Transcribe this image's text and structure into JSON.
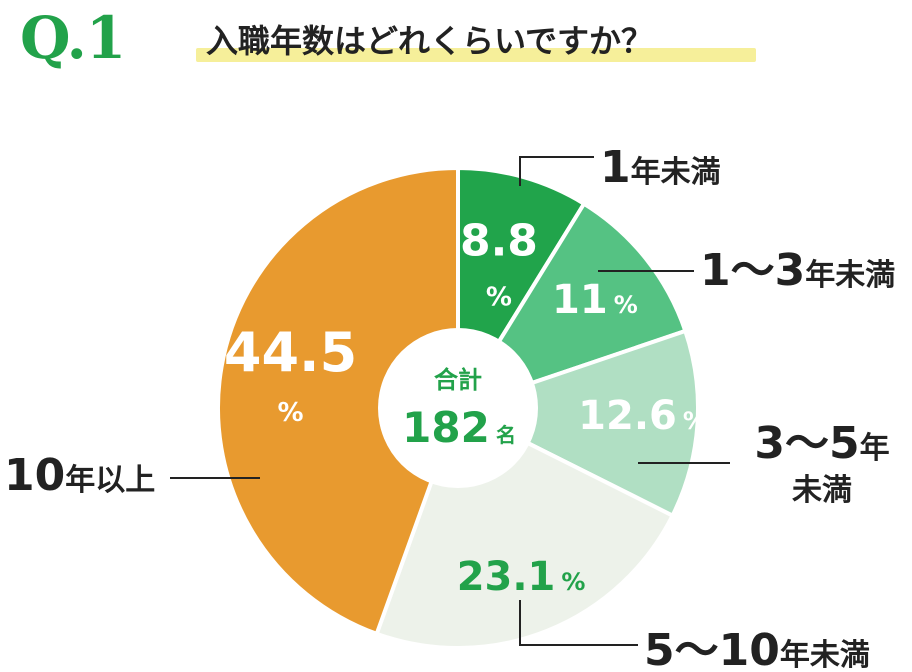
{
  "question": {
    "number": "Q.1",
    "text": "入職年数はどれくらいですか？"
  },
  "colors": {
    "accent": "#22a24a",
    "highlight": "#f6ef9a",
    "label_text": "#222222"
  },
  "chart_data": {
    "type": "pie",
    "style": "donut",
    "categories": [
      "1年未満",
      "1〜3年未満",
      "3〜5年未満",
      "5〜10年未満",
      "10年以上"
    ],
    "values": [
      8.8,
      11,
      12.6,
      23.1,
      44.5
    ],
    "unit": "%",
    "colors": [
      "#21a44b",
      "#55c283",
      "#b0dfc3",
      "#edf2ea",
      "#e89a2f"
    ],
    "value_text_colors": [
      "#ffffff",
      "#ffffff",
      "#ffffff",
      "#22a24a",
      "#ffffff"
    ],
    "center": {
      "label": "合計",
      "total": "182",
      "total_unit": "名"
    }
  }
}
